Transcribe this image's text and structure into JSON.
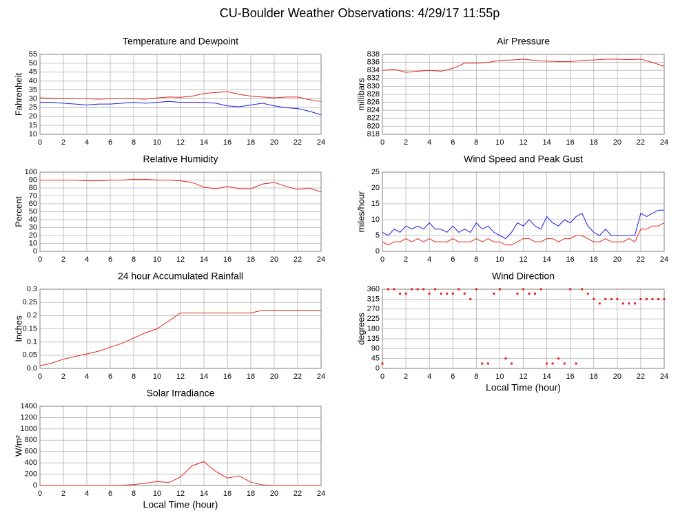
{
  "title": "CU-Boulder Weather Observations: 4/29/17 11:55p",
  "chart_data": [
    {
      "type": "line",
      "title": "Temperature and Dewpoint",
      "y_label": "Fahrenheit",
      "x": [
        0,
        1,
        2,
        3,
        4,
        5,
        6,
        7,
        8,
        9,
        10,
        11,
        12,
        13,
        14,
        15,
        16,
        17,
        18,
        19,
        20,
        21,
        22,
        23,
        24
      ],
      "series": [
        {
          "name": "Temperature",
          "color": "#e8211c",
          "values": [
            30.5,
            30.3,
            30.2,
            30,
            30,
            29.8,
            30,
            30,
            30,
            29.8,
            30.5,
            31,
            30.8,
            31.5,
            33,
            33.5,
            34,
            32.5,
            31.5,
            31,
            30.5,
            31,
            31,
            29.5,
            28.5
          ]
        },
        {
          "name": "Dewpoint",
          "color": "#1a1ae8",
          "values": [
            28,
            28,
            27.5,
            27,
            26.5,
            27,
            27,
            27.5,
            28,
            27.5,
            28,
            28.5,
            28,
            28,
            28,
            27.5,
            26,
            25.5,
            26.5,
            27.5,
            26,
            25,
            24.5,
            23,
            21
          ]
        }
      ],
      "xlim": [
        0,
        24
      ],
      "xticks": [
        0,
        2,
        4,
        6,
        8,
        10,
        12,
        14,
        16,
        18,
        20,
        22,
        24
      ],
      "ylim": [
        10,
        55
      ],
      "yticks": [
        10,
        15,
        20,
        25,
        30,
        35,
        40,
        45,
        50,
        55
      ],
      "grid": true
    },
    {
      "type": "line",
      "title": "Air Pressure",
      "y_label": "millibars",
      "x": [
        0,
        1,
        2,
        3,
        4,
        5,
        6,
        7,
        8,
        9,
        10,
        11,
        12,
        13,
        14,
        15,
        16,
        17,
        18,
        19,
        20,
        21,
        22,
        23,
        24
      ],
      "series": [
        {
          "name": "Pressure",
          "color": "#e8211c",
          "values": [
            834,
            834.3,
            833.5,
            833.8,
            834,
            833.8,
            834.5,
            835.8,
            835.8,
            836,
            836.5,
            836.6,
            836.8,
            836.5,
            836.3,
            836.2,
            836.2,
            836.5,
            836.6,
            836.8,
            836.8,
            836.7,
            836.8,
            836,
            835
          ]
        }
      ],
      "xlim": [
        0,
        24
      ],
      "xticks": [
        0,
        2,
        4,
        6,
        8,
        10,
        12,
        14,
        16,
        18,
        20,
        22,
        24
      ],
      "ylim": [
        818,
        838
      ],
      "yticks": [
        818,
        820,
        822,
        824,
        826,
        828,
        830,
        832,
        834,
        836,
        838
      ],
      "grid": true
    },
    {
      "type": "line",
      "title": "Relative Humidity",
      "y_label": "Percent",
      "x": [
        0,
        1,
        2,
        3,
        4,
        5,
        6,
        7,
        8,
        9,
        10,
        11,
        12,
        13,
        14,
        15,
        16,
        17,
        18,
        19,
        20,
        21,
        22,
        23,
        24
      ],
      "series": [
        {
          "name": "Humidity",
          "color": "#e8211c",
          "values": [
            90,
            90,
            90,
            90,
            89,
            89,
            90,
            90,
            91,
            91,
            90,
            90,
            89,
            87,
            81,
            79,
            82,
            79,
            79,
            85,
            87,
            82,
            78,
            80,
            75
          ]
        }
      ],
      "xlim": [
        0,
        24
      ],
      "xticks": [
        0,
        2,
        4,
        6,
        8,
        10,
        12,
        14,
        16,
        18,
        20,
        22,
        24
      ],
      "ylim": [
        0,
        100
      ],
      "yticks": [
        0,
        10,
        20,
        30,
        40,
        50,
        60,
        70,
        80,
        90,
        100
      ],
      "grid": true
    },
    {
      "type": "line",
      "title": "Wind Speed and Peak Gust",
      "y_label": "miles/hour",
      "x": [
        0,
        0.5,
        1,
        1.5,
        2,
        2.5,
        3,
        3.5,
        4,
        4.5,
        5,
        5.5,
        6,
        6.5,
        7,
        7.5,
        8,
        8.5,
        9,
        9.5,
        10,
        10.5,
        11,
        11.5,
        12,
        12.5,
        13,
        13.5,
        14,
        14.5,
        15,
        15.5,
        16,
        16.5,
        17,
        17.5,
        18,
        18.5,
        19,
        19.5,
        20,
        20.5,
        21,
        21.5,
        22,
        22.5,
        23,
        23.5,
        24
      ],
      "series": [
        {
          "name": "Peak Gust",
          "color": "#1a1ae8",
          "values": [
            6,
            5,
            7,
            6,
            8,
            7,
            8,
            7,
            9,
            7,
            7,
            6,
            8,
            6,
            7,
            6,
            9,
            7,
            8,
            6,
            5,
            4,
            6,
            9,
            8,
            10,
            8,
            7,
            11,
            9,
            8,
            10,
            9,
            11,
            12,
            8,
            6,
            5,
            7,
            5,
            5,
            5,
            5,
            5,
            12,
            11,
            12,
            13,
            13
          ]
        },
        {
          "name": "Wind Speed",
          "color": "#e8211c",
          "values": [
            3,
            2,
            3,
            3,
            4,
            3,
            4,
            3,
            4,
            3,
            3,
            3,
            4,
            3,
            3,
            3,
            4,
            3,
            4,
            3,
            3,
            2,
            2,
            3,
            4,
            4,
            3,
            3,
            4,
            4,
            3,
            4,
            4,
            5,
            5,
            4,
            3,
            3,
            4,
            3,
            3,
            3,
            4,
            3,
            7,
            7,
            8,
            8,
            9
          ]
        }
      ],
      "xlim": [
        0,
        24
      ],
      "xticks": [
        0,
        2,
        4,
        6,
        8,
        10,
        12,
        14,
        16,
        18,
        20,
        22,
        24
      ],
      "ylim": [
        0,
        25
      ],
      "yticks": [
        0,
        5,
        10,
        15,
        20,
        25
      ],
      "grid": true
    },
    {
      "type": "line",
      "title": "24 hour Accumulated Rainfall",
      "y_label": "Inches",
      "x": [
        0,
        1,
        2,
        3,
        4,
        5,
        6,
        7,
        8,
        9,
        10,
        11,
        12,
        13,
        14,
        15,
        16,
        17,
        18,
        19,
        20,
        21,
        22,
        23,
        24
      ],
      "series": [
        {
          "name": "Rainfall",
          "color": "#e8211c",
          "values": [
            0.01,
            0.02,
            0.035,
            0.045,
            0.055,
            0.065,
            0.08,
            0.095,
            0.115,
            0.135,
            0.15,
            0.18,
            0.21,
            0.21,
            0.21,
            0.21,
            0.21,
            0.21,
            0.21,
            0.22,
            0.22,
            0.22,
            0.22,
            0.22,
            0.22
          ]
        }
      ],
      "xlim": [
        0,
        24
      ],
      "xticks": [
        0,
        2,
        4,
        6,
        8,
        10,
        12,
        14,
        16,
        18,
        20,
        22,
        24
      ],
      "ylim": [
        0,
        0.3
      ],
      "yticks": [
        {
          "value": 0,
          "label": "0.0"
        },
        0.05,
        0.1,
        0.15,
        0.2,
        0.25,
        0.3
      ],
      "grid": true
    },
    {
      "type": "scatter",
      "title": "Wind Direction",
      "y_label": "degrees",
      "x_label": "Local Time (hour)",
      "x": [
        0,
        0.5,
        1,
        1.5,
        2,
        2.5,
        3,
        3.5,
        4,
        4.5,
        5,
        5.5,
        6,
        6.5,
        7,
        7.5,
        8,
        8.5,
        9,
        9.5,
        10,
        10.5,
        11,
        11.5,
        12,
        12.5,
        13,
        13.5,
        14,
        14.5,
        15,
        15.5,
        16,
        16.5,
        17,
        17.5,
        18,
        18.5,
        19,
        19.5,
        20,
        20.5,
        21,
        21.5,
        22,
        22.5,
        23,
        23.5,
        24
      ],
      "series": [
        {
          "name": "Direction",
          "color": "#e8211c",
          "values": [
            22,
            360,
            360,
            340,
            340,
            360,
            360,
            360,
            340,
            360,
            340,
            340,
            340,
            360,
            340,
            315,
            360,
            22,
            22,
            340,
            360,
            45,
            22,
            340,
            360,
            340,
            340,
            360,
            22,
            22,
            45,
            22,
            360,
            22,
            360,
            340,
            315,
            295,
            315,
            315,
            315,
            295,
            295,
            295,
            315,
            315,
            315,
            315,
            315
          ]
        }
      ],
      "xlim": [
        0,
        24
      ],
      "xticks": [
        0,
        2,
        4,
        6,
        8,
        10,
        12,
        14,
        16,
        18,
        20,
        22,
        24
      ],
      "ylim": [
        0,
        360
      ],
      "yticks": [
        0,
        45,
        90,
        135,
        180,
        225,
        270,
        315,
        360
      ],
      "grid": true
    },
    {
      "type": "line",
      "title": "Solar Irradiance",
      "y_label": "W/m²",
      "x_label": "Local Time (hour)",
      "x": [
        0,
        1,
        2,
        3,
        4,
        5,
        6,
        7,
        8,
        9,
        10,
        11,
        12,
        13,
        14,
        15,
        16,
        17,
        18,
        19,
        20,
        21,
        22,
        23,
        24
      ],
      "series": [
        {
          "name": "Irradiance",
          "color": "#e8211c",
          "values": [
            0,
            0,
            0,
            0,
            0,
            0,
            0,
            5,
            15,
            40,
            70,
            50,
            150,
            350,
            420,
            250,
            130,
            170,
            60,
            10,
            0,
            0,
            0,
            0,
            0
          ]
        }
      ],
      "xlim": [
        0,
        24
      ],
      "xticks": [
        0,
        2,
        4,
        6,
        8,
        10,
        12,
        14,
        16,
        18,
        20,
        22,
        24
      ],
      "ylim": [
        0,
        1400
      ],
      "yticks": [
        0,
        200,
        400,
        600,
        800,
        1000,
        1200,
        1400
      ],
      "grid": true
    }
  ]
}
